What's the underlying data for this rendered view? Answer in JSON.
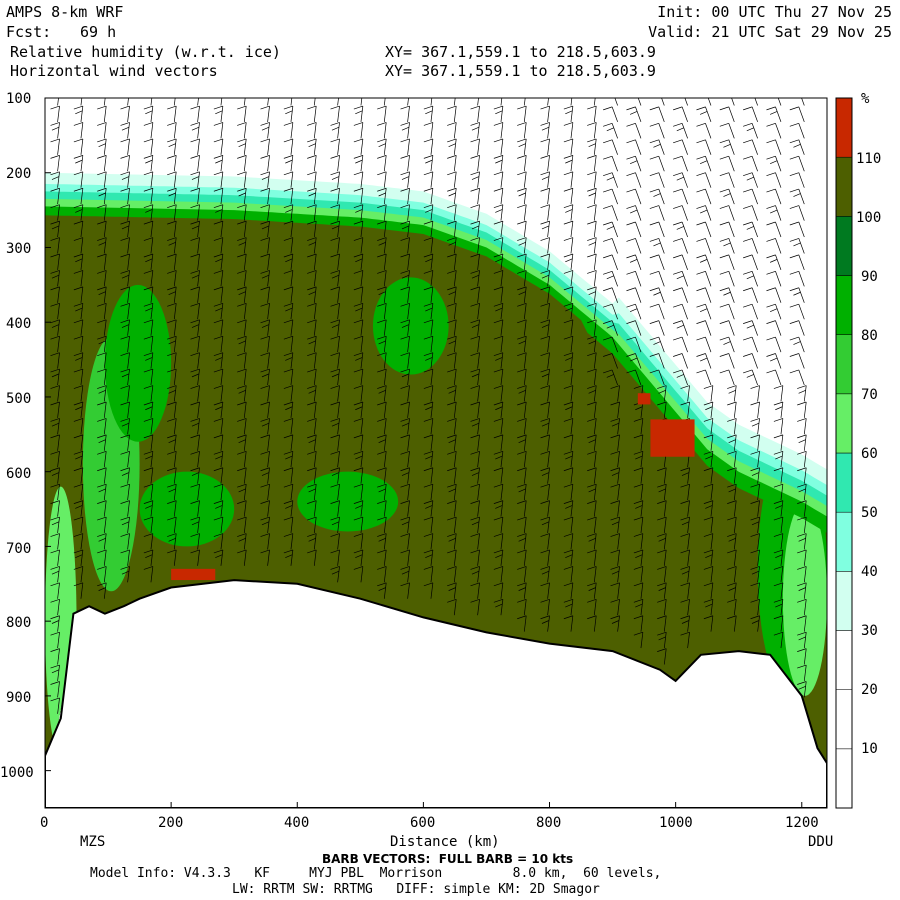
{
  "header": {
    "model": "AMPS 8-km WRF",
    "fcst_label": "Fcst:",
    "fcst_value": "69 h",
    "field1": "Relative humidity (w.r.t. ice)",
    "field2": "Horizontal wind vectors",
    "xy1": "XY= 367.1,559.1 to 218.5,603.9",
    "xy2": "XY= 367.1,559.1 to 218.5,603.9",
    "init": "Init: 00 UTC Thu 27 Nov 25",
    "valid": "Valid: 21 UTC Sat 29 Nov 25"
  },
  "footer": {
    "barb": "BARB VECTORS:  FULL BARB = 10 kts",
    "model_info": "Model Info: V4.3.3   KF     MYJ PBL  Morrison         8.0 km,  60 levels,",
    "physics": "LW: RRTM SW: RRTMG   DIFF: simple KM: 2D Smagor"
  },
  "chart_data": {
    "type": "heatmap",
    "xlabel": "Distance (km)",
    "ylabel": "",
    "x_ticks": [
      "0",
      "200",
      "400",
      "600",
      "800",
      "1000",
      "1200"
    ],
    "y_ticks": [
      "100",
      "200",
      "300",
      "400",
      "500",
      "600",
      "700",
      "800",
      "900",
      "1000"
    ],
    "xlim": [
      0,
      1240
    ],
    "ylim": [
      1050,
      100
    ],
    "endpoint_left": "MZS",
    "endpoint_right": "DDU",
    "colorbar": {
      "unit": "%",
      "levels": [
        "10",
        "20",
        "30",
        "40",
        "50",
        "60",
        "70",
        "80",
        "90",
        "100",
        "110"
      ],
      "colors": [
        "#ffffff",
        "#ffffff",
        "#ffffff",
        "#d2fff0",
        "#80ffe0",
        "#30e8b0",
        "#66ee66",
        "#33cc33",
        "#00b000",
        "#007a20",
        "#4d5f00",
        "#c82800"
      ]
    },
    "terrain_top_hpa": [
      [
        0,
        980
      ],
      [
        25,
        930
      ],
      [
        45,
        790
      ],
      [
        70,
        780
      ],
      [
        95,
        790
      ],
      [
        125,
        780
      ],
      [
        150,
        770
      ],
      [
        200,
        755
      ],
      [
        300,
        745
      ],
      [
        400,
        750
      ],
      [
        500,
        770
      ],
      [
        600,
        795
      ],
      [
        700,
        815
      ],
      [
        800,
        830
      ],
      [
        900,
        840
      ],
      [
        975,
        865
      ],
      [
        1000,
        880
      ],
      [
        1040,
        845
      ],
      [
        1100,
        840
      ],
      [
        1150,
        845
      ],
      [
        1200,
        900
      ],
      [
        1225,
        970
      ],
      [
        1240,
        990
      ]
    ],
    "moist_top_hpa": [
      [
        0,
        245
      ],
      [
        300,
        250
      ],
      [
        400,
        255
      ],
      [
        500,
        260
      ],
      [
        600,
        270
      ],
      [
        700,
        300
      ],
      [
        800,
        350
      ],
      [
        900,
        420
      ],
      [
        950,
        470
      ],
      [
        1000,
        520
      ],
      [
        1050,
        570
      ],
      [
        1100,
        600
      ],
      [
        1150,
        620
      ],
      [
        1200,
        640
      ],
      [
        1240,
        660
      ]
    ],
    "red_patches_hpa": [
      {
        "x": [
          200,
          270
        ],
        "p": [
          730,
          745
        ]
      },
      {
        "x": [
          960,
          1030
        ],
        "p": [
          530,
          580
        ]
      },
      {
        "x": [
          940,
          960
        ],
        "p": [
          495,
          510
        ]
      }
    ]
  }
}
